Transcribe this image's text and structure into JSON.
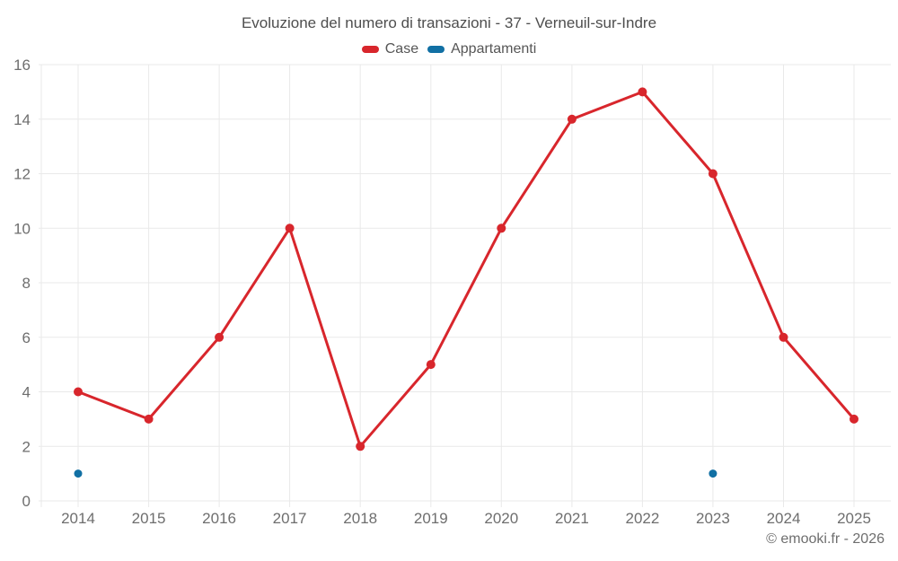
{
  "page": {
    "footer": "© emooki.fr - 2026"
  },
  "colors": {
    "case_red": "#d8262c",
    "appartamenti_blue": "#1170a4",
    "gridline": "#e9e9e9",
    "axis_label": "#6e6e6e",
    "title_text": "#4e4e4e"
  },
  "chart_data": {
    "type": "line",
    "title": "Evoluzione del numero di transazioni - 37 - Verneuil-sur-Indre",
    "categories": [
      "2014",
      "2015",
      "2016",
      "2017",
      "2018",
      "2019",
      "2020",
      "2021",
      "2022",
      "2023",
      "2024",
      "2025"
    ],
    "series": [
      {
        "name": "Case",
        "color": "#d8262c",
        "values": [
          4,
          3,
          6,
          10,
          2,
          5,
          10,
          14,
          15,
          12,
          6,
          3
        ]
      },
      {
        "name": "Appartamenti",
        "color": "#1170a4",
        "values": [
          1,
          null,
          null,
          null,
          null,
          null,
          null,
          null,
          null,
          1,
          null,
          null
        ]
      }
    ],
    "xlabel": "",
    "ylabel": "",
    "ylim": [
      0,
      16
    ],
    "yticks": [
      0,
      2,
      4,
      6,
      8,
      10,
      12,
      14,
      16
    ],
    "grid": true,
    "legend_position": "top"
  }
}
